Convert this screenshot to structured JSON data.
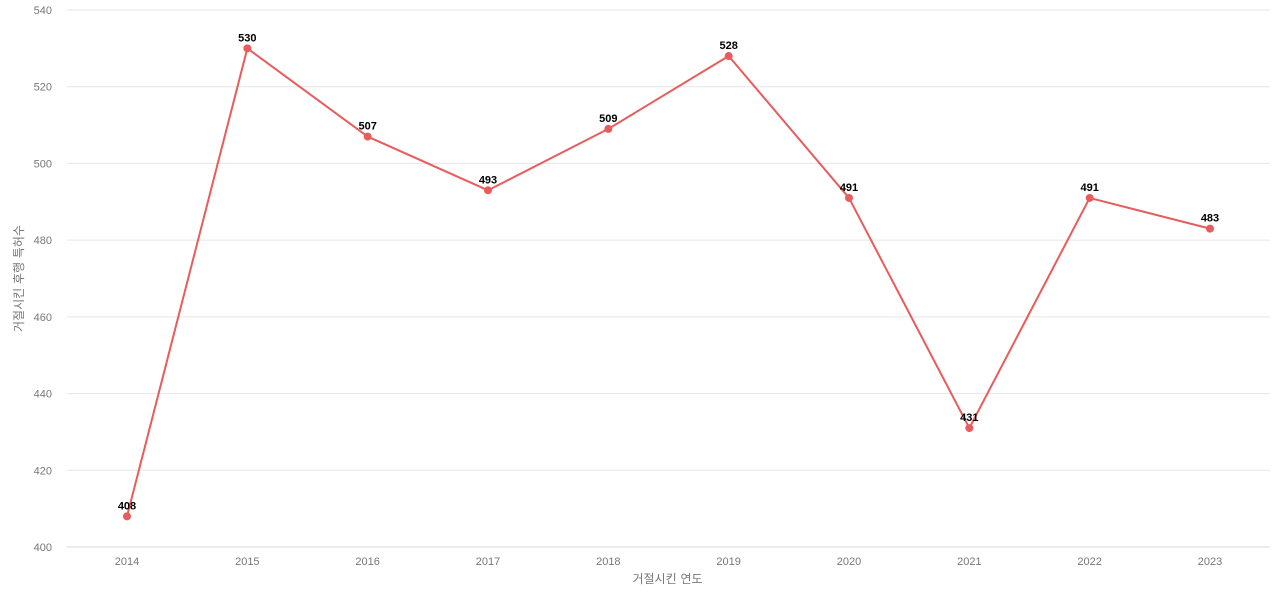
{
  "chart_data": {
    "type": "line",
    "title": "",
    "xlabel": "거절시킨 연도",
    "ylabel": "거절시킨 후행 특허수",
    "categories": [
      "2014",
      "2015",
      "2016",
      "2017",
      "2018",
      "2019",
      "2020",
      "2021",
      "2022",
      "2023"
    ],
    "series": [
      {
        "values": [
          408,
          530,
          507,
          493,
          509,
          528,
          491,
          431,
          491,
          483
        ]
      }
    ],
    "ylim": [
      400,
      540
    ],
    "yticks": [
      400,
      420,
      440,
      460,
      480,
      500,
      520,
      540
    ],
    "grid": true,
    "data_labels": true,
    "colors": {
      "line": "#e85c5c",
      "point": "#e85c5c",
      "grid": "#e6e6e6"
    }
  }
}
